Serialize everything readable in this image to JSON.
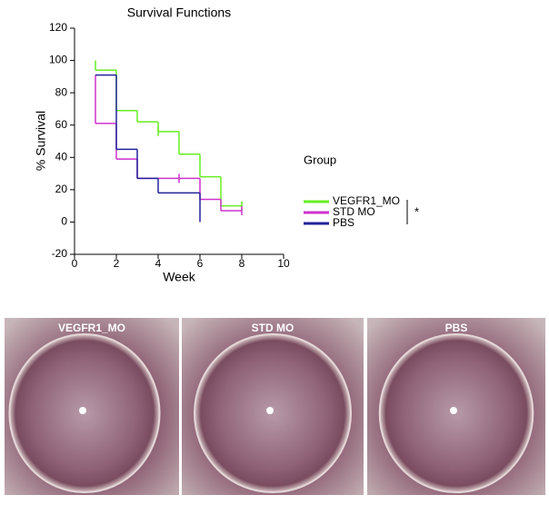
{
  "chart_data": {
    "type": "step",
    "title": "Survival Functions",
    "x_label": "Week",
    "y_label": "% Survival",
    "xlim": [
      0,
      10
    ],
    "xticks": [
      0,
      2,
      4,
      6,
      8,
      10
    ],
    "ylim": [
      -20,
      120
    ],
    "yticks": [
      -20,
      0,
      20,
      40,
      60,
      80,
      100,
      120
    ],
    "grid": false,
    "legend_title": "Group",
    "legend_position": "right",
    "significance": "*",
    "series": [
      {
        "name": "VEGFR1_MO",
        "color": "#66ee22",
        "x": [
          1,
          1,
          2,
          3,
          4,
          5,
          6,
          7
        ],
        "values": [
          100,
          94,
          69,
          62,
          56,
          42,
          28,
          10
        ],
        "censor_x": [
          4,
          8
        ],
        "censor_values": [
          56,
          10
        ]
      },
      {
        "name": "STD MO",
        "color": "#cc33cc",
        "x": [
          1,
          1,
          2,
          3,
          6,
          7
        ],
        "values": [
          91,
          61,
          39,
          27,
          14,
          7
        ],
        "censor_x": [
          5,
          8
        ],
        "censor_values": [
          27,
          7
        ]
      },
      {
        "name": "PBS",
        "color": "#22229a",
        "x": [
          1,
          2,
          3,
          4,
          6
        ],
        "values": [
          91,
          45,
          27,
          18,
          0
        ],
        "censor_x": [],
        "censor_values": []
      }
    ]
  },
  "photos": [
    {
      "label": "VEGFR1_MO"
    },
    {
      "label": "STD MO"
    },
    {
      "label": "PBS"
    }
  ]
}
